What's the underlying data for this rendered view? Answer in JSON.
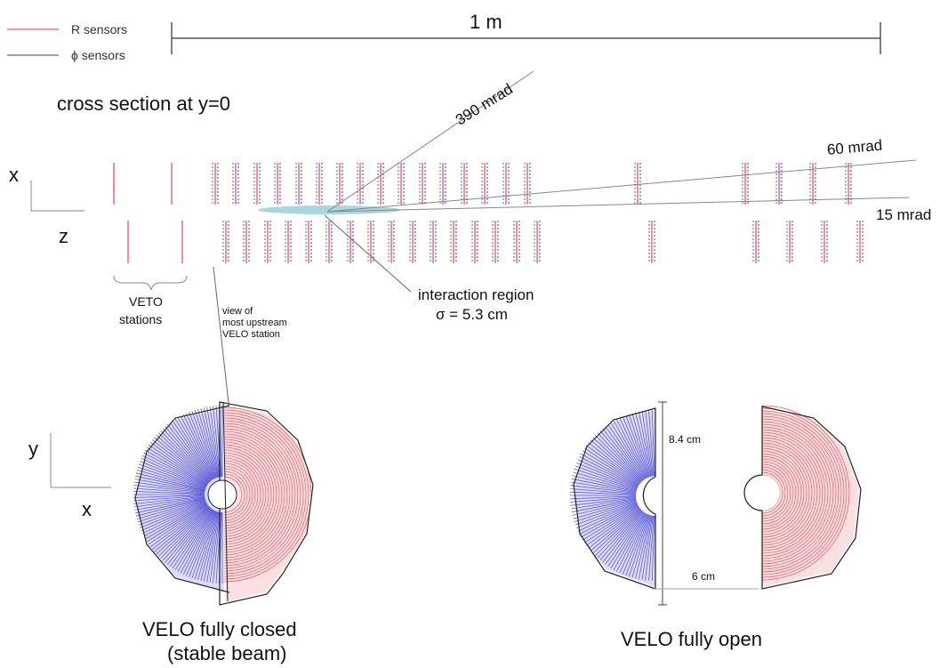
{
  "legend": {
    "r_label": "R sensors",
    "phi_label": "ϕ sensors"
  },
  "scale_label": "1 m",
  "title": "cross section at y=0",
  "axes_top": {
    "vertical": "x",
    "horizontal": "z"
  },
  "axes_bottom": {
    "vertical": "y",
    "horizontal": "x"
  },
  "angles": {
    "a390": "390 mrad",
    "a60": "60 mrad",
    "a15": "15 mrad"
  },
  "interaction": {
    "line1": "interaction region",
    "line2": "σ = 5.3 cm"
  },
  "veto": {
    "line1": "VETO",
    "line2": "stations"
  },
  "upstream_view": {
    "line1": "view of",
    "line2": "most upstream",
    "line3": "VELO station"
  },
  "dimensions": {
    "height": "8.4 cm",
    "gap": "6 cm"
  },
  "captions": {
    "closed_line1": "VELO fully closed",
    "closed_line2": "(stable beam)",
    "open": "VELO fully open"
  },
  "colors": {
    "r_sensor": "#e8555f",
    "phi_sensor": "#5a5ad8",
    "beam_region": "#9fd3dd",
    "outline": "#222222"
  }
}
